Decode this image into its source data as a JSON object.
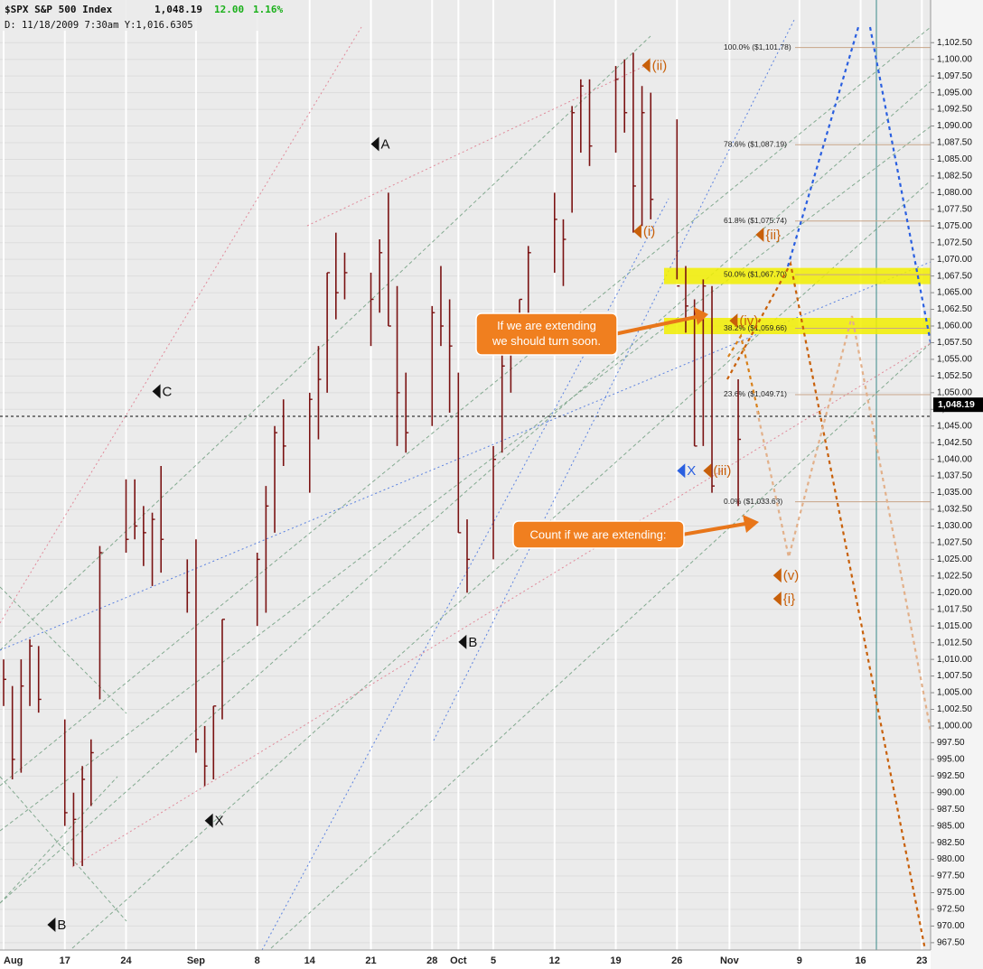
{
  "chart_data": {
    "type": "ohlc",
    "header": {
      "symbol": "$SPX S&P 500 Index",
      "price": "1,048.19",
      "change": "12.00",
      "percent": "1.16%",
      "info": "D: 11/18/2009   7:30am Y:1,016.6305"
    },
    "last_price": {
      "value": 1048.19,
      "label": "1,048.19"
    },
    "color": "#7a1212",
    "x": [
      "Aug 10",
      "Aug 11",
      "Aug 12",
      "Aug 13",
      "Aug 14",
      "Aug 17",
      "Aug 18",
      "Aug 19",
      "Aug 20",
      "Aug 21",
      "Aug 24",
      "Aug 25",
      "Aug 26",
      "Aug 27",
      "Aug 28",
      "Aug 31",
      "Sep 1",
      "Sep 2",
      "Sep 3",
      "Sep 4",
      "Sep 8",
      "Sep 9",
      "Sep 10",
      "Sep 11",
      "Sep 14",
      "Sep 15",
      "Sep 16",
      "Sep 17",
      "Sep 18",
      "Sep 21",
      "Sep 22",
      "Sep 23",
      "Sep 24",
      "Sep 25",
      "Sep 28",
      "Sep 29",
      "Sep 30",
      "Oct 1",
      "Oct 2",
      "Oct 5",
      "Oct 6",
      "Oct 7",
      "Oct 8",
      "Oct 9",
      "Oct 12",
      "Oct 13",
      "Oct 14",
      "Oct 15",
      "Oct 16",
      "Oct 19",
      "Oct 20",
      "Oct 21",
      "Oct 22",
      "Oct 23",
      "Oct 26",
      "Oct 27",
      "Oct 28",
      "Oct 29",
      "Oct 30",
      "Nov 2"
    ],
    "high": [
      1010,
      1006,
      1010,
      1013,
      1012,
      1001,
      990,
      994,
      998,
      1027,
      1037,
      1037,
      1033,
      1032,
      1039,
      1025,
      1028,
      1000,
      1003,
      1016,
      1026,
      1036,
      1045,
      1049,
      1050,
      1057,
      1068,
      1074,
      1071,
      1068,
      1073,
      1080,
      1066,
      1053,
      1063,
      1069,
      1064,
      1053,
      1031,
      1042,
      1060,
      1058,
      1064,
      1072,
      1080,
      1076,
      1093,
      1097,
      1097,
      1099,
      1100,
      1101,
      1096,
      1095,
      1091,
      1069,
      1064,
      1067,
      1066,
      1052
    ],
    "low": [
      1003,
      992,
      993,
      1003,
      1002,
      985,
      979,
      979,
      988,
      1004,
      1026,
      1028,
      1024,
      1021,
      1023,
      1017,
      996,
      991,
      992,
      1001,
      1015,
      1017,
      1029,
      1039,
      1035,
      1043,
      1050,
      1061,
      1064,
      1057,
      1062,
      1060,
      1042,
      1041,
      1045,
      1057,
      1047,
      1029,
      1020,
      1025,
      1041,
      1050,
      1057,
      1060,
      1068,
      1066,
      1077,
      1086,
      1084,
      1086,
      1089,
      1074,
      1075,
      1076,
      1067,
      1059,
      1042,
      1042,
      1035,
      1033
    ],
    "close": [
      1007,
      995,
      1006,
      1012,
      1004,
      987,
      986,
      992,
      996,
      1026,
      1028,
      1030,
      1029,
      1031,
      1028,
      1020,
      998,
      994,
      1003,
      1016,
      1025,
      1033,
      1044,
      1042,
      1049,
      1052,
      1068,
      1065,
      1068,
      1064,
      1071,
      1060,
      1050,
      1044,
      1062,
      1060,
      1057,
      1029,
      1025,
      1040,
      1054,
      1057,
      1064,
      1071,
      1076,
      1073,
      1092,
      1096,
      1087,
      1097,
      1092,
      1081,
      1092,
      1079,
      1066,
      1063,
      1042,
      1066,
      1036,
      1043
    ],
    "xlim": [
      "Aug 10",
      "Nov 24"
    ],
    "xticks": [
      {
        "value": "Aug 10",
        "label": "Aug"
      },
      {
        "value": "Aug 17",
        "label": "17"
      },
      {
        "value": "Aug 24",
        "label": "24"
      },
      {
        "value": "Sep 1",
        "label": "Sep"
      },
      {
        "value": "Sep 8",
        "label": "8"
      },
      {
        "value": "Sep 14",
        "label": "14"
      },
      {
        "value": "Sep 21",
        "label": "21"
      },
      {
        "value": "Sep 28",
        "label": "28"
      },
      {
        "value": "Oct 1",
        "label": "Oct"
      },
      {
        "value": "Oct 5",
        "label": "5"
      },
      {
        "value": "Oct 12",
        "label": "12"
      },
      {
        "value": "Oct 19",
        "label": "19"
      },
      {
        "value": "Oct 26",
        "label": "26"
      },
      {
        "value": "Nov 1",
        "label": "Nov"
      },
      {
        "value": "Nov 9",
        "label": "9"
      },
      {
        "value": "Nov 16",
        "label": "16"
      },
      {
        "value": "Nov 23",
        "label": "23"
      }
    ],
    "ylim": [
      966.4,
      1108.9
    ],
    "yticks": [
      {
        "value": 967.5,
        "label": "967.50"
      },
      {
        "value": 970,
        "label": "970.00"
      },
      {
        "value": 972.5,
        "label": "972.50"
      },
      {
        "value": 975,
        "label": "975.00"
      },
      {
        "value": 977.5,
        "label": "977.50"
      },
      {
        "value": 980,
        "label": "980.00"
      },
      {
        "value": 982.5,
        "label": "982.50"
      },
      {
        "value": 985,
        "label": "985.00"
      },
      {
        "value": 987.5,
        "label": "987.50"
      },
      {
        "value": 990,
        "label": "990.00"
      },
      {
        "value": 992.5,
        "label": "992.50"
      },
      {
        "value": 995,
        "label": "995.00"
      },
      {
        "value": 997.5,
        "label": "997.50"
      },
      {
        "value": 1000,
        "label": "1,000.00"
      },
      {
        "value": 1002.5,
        "label": "1,002.50"
      },
      {
        "value": 1005,
        "label": "1,005.00"
      },
      {
        "value": 1007.5,
        "label": "1,007.50"
      },
      {
        "value": 1010,
        "label": "1,010.00"
      },
      {
        "value": 1012.5,
        "label": "1,012.50"
      },
      {
        "value": 1015,
        "label": "1,015.00"
      },
      {
        "value": 1017.5,
        "label": "1,017.50"
      },
      {
        "value": 1020,
        "label": "1,020.00"
      },
      {
        "value": 1022.5,
        "label": "1,022.50"
      },
      {
        "value": 1025,
        "label": "1,025.00"
      },
      {
        "value": 1027.5,
        "label": "1,027.50"
      },
      {
        "value": 1030,
        "label": "1,030.00"
      },
      {
        "value": 1032.5,
        "label": "1,032.50"
      },
      {
        "value": 1035,
        "label": "1,035.00"
      },
      {
        "value": 1037.5,
        "label": "1,037.50"
      },
      {
        "value": 1040,
        "label": "1,040.00"
      },
      {
        "value": 1042.5,
        "label": "1,042.50"
      },
      {
        "value": 1045,
        "label": "1,045.00"
      },
      {
        "value": 1047.5,
        "label": "1,047.50"
      },
      {
        "value": 1050,
        "label": "1,050.00"
      },
      {
        "value": 1052.5,
        "label": "1,052.50"
      },
      {
        "value": 1055,
        "label": "1,055.00"
      },
      {
        "value": 1057.5,
        "label": "1,057.50"
      },
      {
        "value": 1060,
        "label": "1,060.00"
      },
      {
        "value": 1062.5,
        "label": "1,062.50"
      },
      {
        "value": 1065,
        "label": "1,065.00"
      },
      {
        "value": 1067.5,
        "label": "1,067.50"
      },
      {
        "value": 1070,
        "label": "1,070.00"
      },
      {
        "value": 1072.5,
        "label": "1,072.50"
      },
      {
        "value": 1075,
        "label": "1,075.00"
      },
      {
        "value": 1077.5,
        "label": "1,077.50"
      },
      {
        "value": 1080,
        "label": "1,080.00"
      },
      {
        "value": 1082.5,
        "label": "1,082.50"
      },
      {
        "value": 1085,
        "label": "1,085.00"
      },
      {
        "value": 1087.5,
        "label": "1,087.50"
      },
      {
        "value": 1090,
        "label": "1,090.00"
      },
      {
        "value": 1092.5,
        "label": "1,092.50"
      },
      {
        "value": 1095,
        "label": "1,095.00"
      },
      {
        "value": 1097.5,
        "label": "1,097.50"
      },
      {
        "value": 1100,
        "label": "1,100.00"
      },
      {
        "value": 1102.5,
        "label": "1,102.50"
      }
    ],
    "grid": true,
    "highlight_bands": [
      {
        "value": 1067.5,
        "color": "#f2ee00"
      },
      {
        "value": 1060,
        "color": "#f2ee00"
      }
    ],
    "fib_levels": [
      {
        "level": 1101.78,
        "label": "100.0%  ($1,101.78)"
      },
      {
        "level": 1087.19,
        "label": "78.6%  ($1,087.19)"
      },
      {
        "level": 1075.74,
        "label": "61.8%  ($1,075.74)"
      },
      {
        "level": 1067.7,
        "label": "50.0%  ($1,067.70)"
      },
      {
        "level": 1059.66,
        "label": "38.2%  ($1,059.66)"
      },
      {
        "level": 1049.71,
        "label": "23.6%  ($1,049.71)"
      },
      {
        "level": 1033.63,
        "label": "0.0%  ($1,033.63)"
      }
    ],
    "wave_labels": [
      {
        "text": "A",
        "x": "Sep 21",
        "y": 1087.3,
        "color": "#111111"
      },
      {
        "text": "C",
        "x": "Aug 27",
        "y": 1050.2,
        "color": "#111111"
      },
      {
        "text": "B",
        "x": "Aug 15",
        "y": 970.2,
        "color": "#111111"
      },
      {
        "text": "X",
        "x": "Sep 2",
        "y": 985.8,
        "color": "#111111"
      },
      {
        "text": "B",
        "x": "Oct 1",
        "y": 1012.6,
        "color": "#111111"
      },
      {
        "text": "(ii)",
        "x": "Oct 22",
        "y": 1099.1,
        "color": "#c8600a"
      },
      {
        "text": "(i)",
        "x": "Oct 21",
        "y": 1074.2,
        "color": "#c8600a"
      },
      {
        "text": "{ii}",
        "x": "Nov 4",
        "y": 1073.7,
        "color": "#c8600a"
      },
      {
        "text": "(iv)",
        "x": "Nov 1",
        "y": 1060.8,
        "color": "#c8600a"
      },
      {
        "text": "(iii)",
        "x": "Oct 29",
        "y": 1038.3,
        "color": "#c8600a"
      },
      {
        "text": "X",
        "x": "Oct 26",
        "y": 1038.3,
        "color": "#2a5fe0"
      },
      {
        "text": "(v)",
        "x": "Nov 6",
        "y": 1022.6,
        "color": "#c8600a"
      },
      {
        "text": "{i}",
        "x": "Nov 6",
        "y": 1019.1,
        "color": "#c8600a"
      }
    ],
    "callouts": [
      "If we are extending\nwe should turn soon.",
      "Count if we are extending:"
    ]
  }
}
